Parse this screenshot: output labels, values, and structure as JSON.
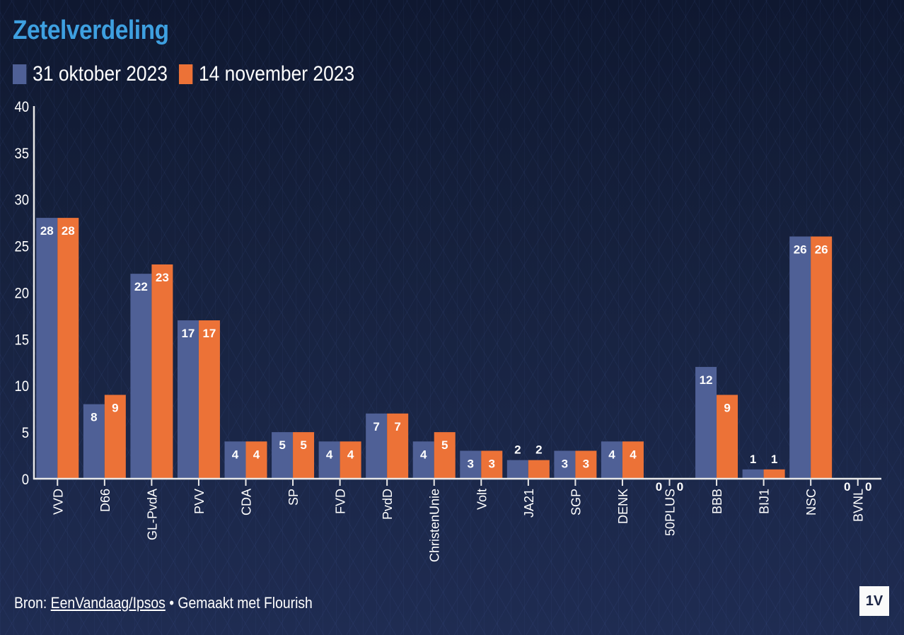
{
  "chart_data": {
    "type": "bar",
    "title": "Zetelverdeling",
    "xlabel": "",
    "ylabel": "",
    "ylim": [
      0,
      40
    ],
    "yticks": [
      0,
      5,
      10,
      15,
      20,
      25,
      30,
      35,
      40
    ],
    "grid": false,
    "legend_position": "top-left",
    "categories": [
      "VVD",
      "D66",
      "GL-PvdA",
      "PVV",
      "CDA",
      "SP",
      "FVD",
      "PvdD",
      "ChristenUnie",
      "Volt",
      "JA21",
      "SGP",
      "DENK",
      "50PLUS",
      "BBB",
      "BIJ1",
      "NSC",
      "BVNL"
    ],
    "series": [
      {
        "name": "31 oktober 2023",
        "color": "#4f6096",
        "values": [
          28,
          8,
          22,
          17,
          4,
          5,
          4,
          7,
          4,
          3,
          2,
          3,
          4,
          0,
          12,
          1,
          26,
          0
        ]
      },
      {
        "name": "14 november 2023",
        "color": "#ec7237",
        "values": [
          28,
          9,
          23,
          17,
          4,
          5,
          4,
          7,
          5,
          3,
          2,
          3,
          4,
          0,
          9,
          1,
          26,
          0
        ]
      }
    ]
  },
  "footer": {
    "source_prefix": "Bron: ",
    "source_link": "EenVandaag/Ipsos",
    "separator": " • ",
    "made_with": "Gemaakt met Flourish"
  },
  "logo": {
    "text": "1V"
  }
}
